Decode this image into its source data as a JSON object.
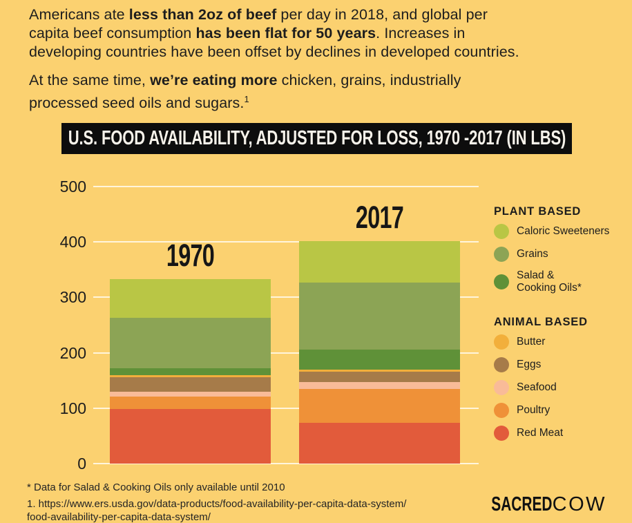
{
  "page": {
    "background": "#fbd170",
    "text_color": "#1d1d1d",
    "banner_background": "#0d0d0d",
    "banner_text_color": "#f6f2ea",
    "gridline_color": "#fffcee"
  },
  "intro": {
    "p1": [
      "Americans ate ",
      "less than 2oz of beef",
      " per day in 2018, and global per\ncapita beef consumption ",
      "has been flat for 50 years",
      ". Increases in\ndeveloping countries have been offset by declines in developed countries."
    ],
    "p2": [
      "At the same time, ",
      "we’re eating more",
      " chicken, grains, industrially\nprocessed seed oils and sugars.",
      "1"
    ]
  },
  "chart": {
    "title": "U.S. FOOD AVAILABILITY, ADJUSTED FOR LOSS, 1970 -2017 (IN LBS)"
  },
  "chart_data": {
    "type": "bar",
    "stacked": true,
    "title": "U.S. FOOD AVAILABILITY, ADJUSTED FOR LOSS, 1970 -2017 (IN LBS)",
    "categories": [
      "1970",
      "2017"
    ],
    "series": [
      {
        "name": "Red Meat",
        "group": "ANIMAL BASED",
        "color": "#e25b3b",
        "values": [
          98,
          74
        ]
      },
      {
        "name": "Poultry",
        "group": "ANIMAL BASED",
        "color": "#ef9138",
        "values": [
          23,
          61
        ]
      },
      {
        "name": "Seafood",
        "group": "ANIMAL BASED",
        "color": "#f9bb98",
        "values": [
          9,
          12
        ]
      },
      {
        "name": "Eggs",
        "group": "ANIMAL BASED",
        "color": "#a67b49",
        "values": [
          26,
          19
        ]
      },
      {
        "name": "Butter",
        "group": "ANIMAL BASED",
        "color": "#f2af3b",
        "values": [
          4,
          4
        ]
      },
      {
        "name": "Salad & Cooking Oils*",
        "group": "PLANT BASED",
        "color": "#5f9138",
        "values": [
          12,
          36
        ]
      },
      {
        "name": "Grains",
        "group": "PLANT BASED",
        "color": "#8ca455",
        "values": [
          91,
          121
        ]
      },
      {
        "name": "Caloric Sweeteners",
        "group": "PLANT BASED",
        "color": "#b9c645",
        "values": [
          70,
          75
        ]
      }
    ],
    "totals": [
      333,
      402
    ],
    "xlabel": "",
    "ylabel": "",
    "ylim": [
      0,
      500
    ],
    "yticks": [
      0,
      100,
      200,
      300,
      400,
      500
    ],
    "grid": true,
    "legend_position": "right"
  },
  "legend": {
    "sections": [
      {
        "header": "PLANT BASED",
        "items": [
          {
            "label": "Caloric Sweeteners",
            "color": "#b9c645"
          },
          {
            "label": "Grains",
            "color": "#8ca455"
          },
          {
            "label": "Salad &\nCooking Oils*",
            "color": "#5f9138"
          }
        ]
      },
      {
        "header": "ANIMAL BASED",
        "items": [
          {
            "label": "Butter",
            "color": "#f2af3b"
          },
          {
            "label": "Eggs",
            "color": "#a67b49"
          },
          {
            "label": "Seafood",
            "color": "#f9bb98"
          },
          {
            "label": "Poultry",
            "color": "#ef9138"
          },
          {
            "label": "Red Meat",
            "color": "#e25b3b"
          }
        ]
      }
    ]
  },
  "footnotes": {
    "note1": "* Data for Salad & Cooking Oils only available until 2010",
    "note2": "1. https://www.ers.usda.gov/data-products/food-availability-per-capita-data-system/\nfood-availability-per-capita-data-system/"
  },
  "logo": {
    "bold": "SACRED",
    "light": "COW"
  }
}
